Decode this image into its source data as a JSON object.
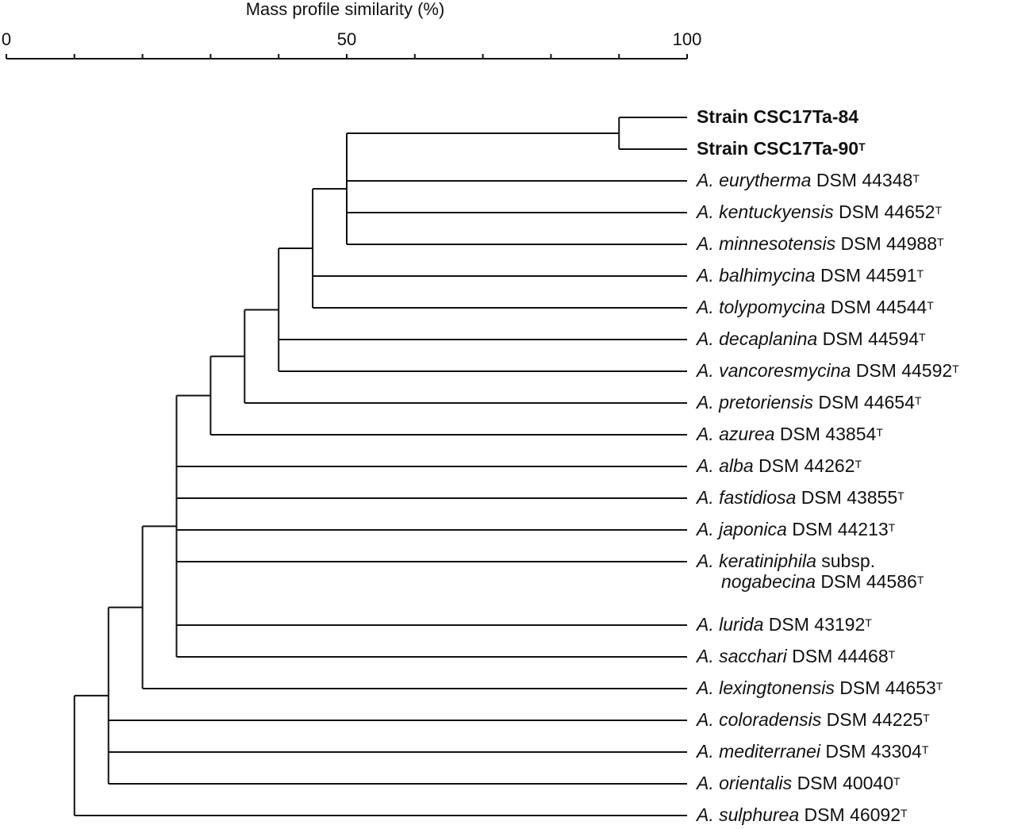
{
  "axis": {
    "title": "Mass profile similarity (%)",
    "ticks": [
      {
        "value": 0,
        "label": "0"
      },
      {
        "value": 10,
        "label": ""
      },
      {
        "value": 20,
        "label": ""
      },
      {
        "value": 30,
        "label": ""
      },
      {
        "value": 40,
        "label": ""
      },
      {
        "value": 50,
        "label": "50"
      },
      {
        "value": 60,
        "label": ""
      },
      {
        "value": 70,
        "label": ""
      },
      {
        "value": 80,
        "label": ""
      },
      {
        "value": 90,
        "label": ""
      },
      {
        "value": 100,
        "label": "100"
      }
    ]
  },
  "leaves": [
    {
      "genus": "",
      "epithet": "",
      "text": "Strain CSC17Ta-84",
      "sup": "",
      "bold": true
    },
    {
      "genus": "",
      "epithet": "",
      "text": "Strain CSC17Ta-90",
      "sup": "T",
      "bold": true
    },
    {
      "genus": "A.",
      "epithet": "eurytherma",
      "text": "DSM 44348",
      "sup": "T"
    },
    {
      "genus": "A.",
      "epithet": "kentuckyensis",
      "text": "DSM 44652",
      "sup": "T"
    },
    {
      "genus": "A.",
      "epithet": "minnesotensis",
      "text": "DSM 44988",
      "sup": "T"
    },
    {
      "genus": "A.",
      "epithet": "balhimycina",
      "text": "DSM 44591",
      "sup": "T"
    },
    {
      "genus": "A.",
      "epithet": "tolypomycina",
      "text": "DSM 44544",
      "sup": "T"
    },
    {
      "genus": "A.",
      "epithet": "decaplanina",
      "text": "DSM 44594",
      "sup": "T"
    },
    {
      "genus": "A.",
      "epithet": "vancoresmycina",
      "text": "DSM 44592",
      "sup": "T"
    },
    {
      "genus": "A.",
      "epithet": "pretoriensis",
      "text": "DSM 44654",
      "sup": "T"
    },
    {
      "genus": "A.",
      "epithet": "azurea",
      "text": "DSM 43854",
      "sup": "T"
    },
    {
      "genus": "A.",
      "epithet": "alba",
      "text": "DSM 44262",
      "sup": "T"
    },
    {
      "genus": "A.",
      "epithet": "fastidiosa",
      "text": "DSM 43855",
      "sup": "T"
    },
    {
      "genus": "A.",
      "epithet": "japonica",
      "text": "DSM 44213",
      "sup": "T"
    },
    {
      "genus": "A.",
      "epithet": "keratiniphila",
      "text": "subsp.",
      "line2_epithet": "nogabecina",
      "line2_text": "DSM 44586",
      "sup": "T"
    },
    {
      "genus": "A.",
      "epithet": "lurida",
      "text": "DSM 43192",
      "sup": "T"
    },
    {
      "genus": "A.",
      "epithet": "sacchari",
      "text": "DSM 44468",
      "sup": "T"
    },
    {
      "genus": "A.",
      "epithet": "lexingtonensis",
      "text": "DSM 44653",
      "sup": "T"
    },
    {
      "genus": "A.",
      "epithet": "coloradensis",
      "text": "DSM 44225",
      "sup": "T"
    },
    {
      "genus": "A.",
      "epithet": "mediterranei",
      "text": "DSM 43304",
      "sup": "T"
    },
    {
      "genus": "A.",
      "epithet": "orientalis",
      "text": "DSM 40040",
      "sup": "T"
    },
    {
      "genus": "A.",
      "epithet": "sulphurea",
      "text": "DSM 46092",
      "sup": "T"
    }
  ],
  "nodes": [
    {
      "id": "n_strains",
      "similarity": 90,
      "children": [
        "L0",
        "L1"
      ]
    },
    {
      "id": "n_a",
      "similarity": 50,
      "children": [
        "n_strains",
        "L2",
        "L3",
        "L4"
      ]
    },
    {
      "id": "n_b",
      "similarity": 45,
      "children": [
        "n_a",
        "L5",
        "L6"
      ]
    },
    {
      "id": "n_c",
      "similarity": 40,
      "children": [
        "n_b",
        "L7",
        "L8"
      ]
    },
    {
      "id": "n_d",
      "similarity": 35,
      "children": [
        "n_c",
        "L9"
      ]
    },
    {
      "id": "n_e",
      "similarity": 30,
      "children": [
        "n_d",
        "L10"
      ]
    },
    {
      "id": "n_f",
      "similarity": 25,
      "children": [
        "n_e",
        "L11",
        "L12",
        "L13",
        "L14",
        "L15",
        "L16"
      ]
    },
    {
      "id": "n_g",
      "similarity": 20,
      "children": [
        "n_f",
        "L17"
      ]
    },
    {
      "id": "n_h",
      "similarity": 15,
      "children": [
        "n_g",
        "L18",
        "L19",
        "L20"
      ]
    },
    {
      "id": "n_root",
      "similarity": 10,
      "children": [
        "n_h",
        "L21"
      ]
    }
  ]
}
